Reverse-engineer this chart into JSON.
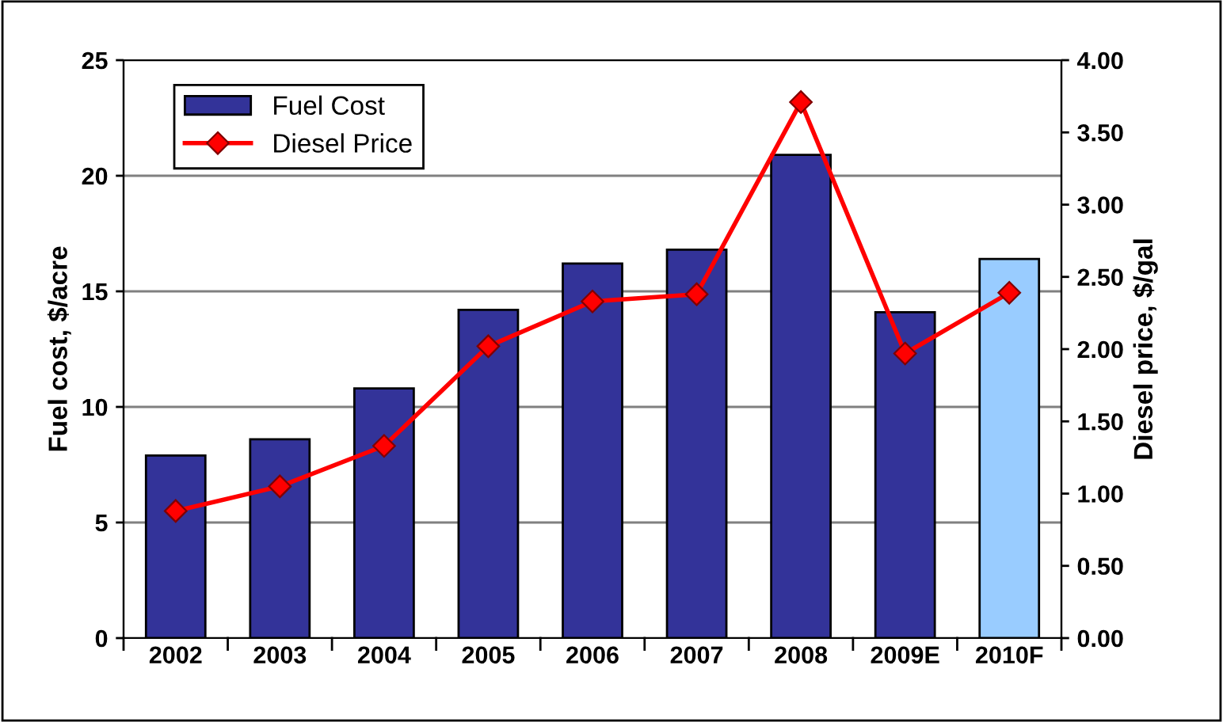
{
  "chart_data": {
    "type": "bar",
    "ylabel": "Fuel cost, $/acre",
    "y2label": "Diesel price, $/gal",
    "categories": [
      "2002",
      "2003",
      "2004",
      "2005",
      "2006",
      "2007",
      "2008",
      "2009E",
      "2010F"
    ],
    "series": [
      {
        "name": "Fuel Cost",
        "colors": [
          "#333399",
          "#333399",
          "#333399",
          "#333399",
          "#333399",
          "#333399",
          "#333399",
          "#333399",
          "#99ccff"
        ],
        "values": [
          7.9,
          8.6,
          10.8,
          14.2,
          16.2,
          16.8,
          20.9,
          14.1,
          16.4
        ]
      },
      {
        "name": "Diesel Price",
        "type": "line",
        "axis": "y2",
        "color": "#ff0000",
        "marker": "diamond",
        "values": [
          0.88,
          1.05,
          1.33,
          2.02,
          2.33,
          2.38,
          3.71,
          1.97,
          2.39
        ]
      }
    ],
    "ylim": [
      0,
      25
    ],
    "yticks": [
      0,
      5,
      10,
      15,
      20,
      25
    ],
    "y2lim": [
      0,
      4
    ],
    "y2ticks": [
      {
        "value": 0,
        "label": "0.00"
      },
      {
        "value": 0.5,
        "label": "0.50"
      },
      {
        "value": 1,
        "label": "1.00"
      },
      {
        "value": 1.5,
        "label": "1.50"
      },
      {
        "value": 2,
        "label": "2.00"
      },
      {
        "value": 2.5,
        "label": "2.50"
      },
      {
        "value": 3,
        "label": "3.00"
      },
      {
        "value": 3.5,
        "label": "3.50"
      },
      {
        "value": 4,
        "label": "4.00"
      }
    ],
    "grid": "y",
    "legend": "top left"
  }
}
